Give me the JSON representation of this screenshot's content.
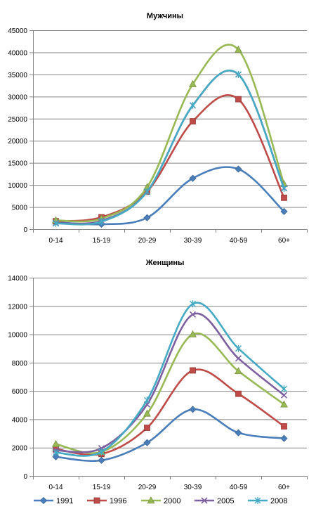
{
  "chart_data": [
    {
      "type": "line",
      "title": "Мужчины",
      "categories": [
        "0-14",
        "15-19",
        "20-29",
        "30-39",
        "40-59",
        "60+"
      ],
      "ylim": [
        0,
        45000
      ],
      "yticks": [
        0,
        5000,
        10000,
        15000,
        20000,
        25000,
        30000,
        35000,
        40000,
        45000
      ],
      "grid": true,
      "smooth": true,
      "series": [
        {
          "name": "1991",
          "color": "#4a7ebb",
          "marker": "diamond",
          "values": [
            1600,
            1100,
            2600,
            11500,
            13600,
            4000
          ]
        },
        {
          "name": "1996",
          "color": "#be4b48",
          "marker": "square",
          "values": [
            1800,
            2700,
            8500,
            24400,
            29400,
            7100
          ]
        },
        {
          "name": "2000",
          "color": "#98b954",
          "marker": "triangle",
          "values": [
            2000,
            2400,
            9500,
            32800,
            40600,
            10200
          ]
        },
        {
          "name": "2005",
          "color": "#7d60a0",
          "marker": "x",
          "values": [
            1400,
            1900,
            8500,
            28000,
            35000,
            9300
          ]
        },
        {
          "name": "2008",
          "color": "#46aac5",
          "marker": "star",
          "values": [
            1300,
            1700,
            8500,
            28000,
            35000,
            9200
          ]
        }
      ]
    },
    {
      "type": "line",
      "title": "Женщины",
      "categories": [
        "0-14",
        "15-19",
        "20-29",
        "30-39",
        "40-59",
        "60+"
      ],
      "ylim": [
        0,
        14000
      ],
      "yticks": [
        0,
        2000,
        4000,
        6000,
        8000,
        10000,
        12000,
        14000
      ],
      "grid": true,
      "smooth": true,
      "legend": "bottom",
      "series": [
        {
          "name": "1991",
          "color": "#4a7ebb",
          "marker": "diamond",
          "values": [
            1350,
            1100,
            2350,
            4700,
            3050,
            2650
          ]
        },
        {
          "name": "1996",
          "color": "#be4b48",
          "marker": "square",
          "values": [
            1900,
            1550,
            3400,
            7450,
            5800,
            3500
          ]
        },
        {
          "name": "2000",
          "color": "#98b954",
          "marker": "triangle",
          "values": [
            2250,
            1700,
            4400,
            10000,
            7400,
            5050
          ]
        },
        {
          "name": "2005",
          "color": "#7d60a0",
          "marker": "x",
          "values": [
            1800,
            1950,
            5050,
            11400,
            8300,
            5700
          ]
        },
        {
          "name": "2008",
          "color": "#46aac5",
          "marker": "star",
          "values": [
            1650,
            1700,
            5350,
            12150,
            9000,
            6150
          ]
        }
      ]
    }
  ]
}
